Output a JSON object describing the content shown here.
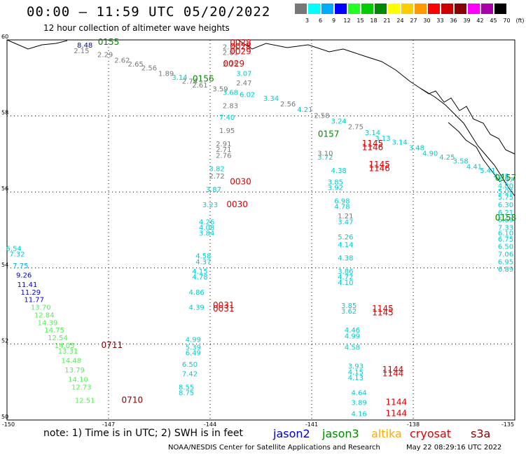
{
  "title": "00:00 – 11:59 UTC 05/20/2022",
  "subtitle": "12 hour collection of altimeter wave heights",
  "note": "note: 1) Time is in UTC; 2) SWH is in feet",
  "credit": "NOAA/NESDIS Center for Satellite Applications and Research",
  "timestamp": "May 22 08:29:16 UTC 2022",
  "legend": {
    "jason2": {
      "label": "jason2",
      "color": "#0000cc"
    },
    "jason3": {
      "label": "jason3",
      "color": "#008800"
    },
    "altika": {
      "label": "altika",
      "color": "#ffaa00"
    },
    "cryosat": {
      "label": "cryosat",
      "color": "#dd0000"
    },
    "s3a": {
      "label": "s3a",
      "color": "#880000"
    }
  },
  "color_scale": {
    "labels": [
      "3",
      "6",
      "9",
      "12",
      "15",
      "18",
      "21",
      "24",
      "27",
      "30",
      "33",
      "36",
      "39",
      "42",
      "45",
      "70",
      "(ft)"
    ],
    "colors": [
      "#777777",
      "#00ffff",
      "#00aaff",
      "#0000ff",
      "#22ff22",
      "#00cc00",
      "#008800",
      "#ffff00",
      "#ffcc00",
      "#ff9900",
      "#ff0000",
      "#cc0000",
      "#880000",
      "#ff00ff",
      "#aa00aa",
      "#000000"
    ]
  },
  "map": {
    "lat_ticks": [
      "60",
      "58",
      "56",
      "54",
      "52",
      "50"
    ],
    "lon_ticks": [
      "-150",
      "-147",
      "-144",
      "-141",
      "-138",
      "-135"
    ],
    "extent": {
      "lon": [
        -150,
        -135
      ],
      "lat": [
        50,
        60
      ]
    }
  },
  "observations": [
    {
      "lon": -147.0,
      "lat": 59.95,
      "v": "0155",
      "c": "#008800",
      "fs": 12
    },
    {
      "lon": -147.7,
      "lat": 59.8,
      "v": "8.48",
      "c": "#0000cc",
      "fs": 10
    },
    {
      "lon": -147.8,
      "lat": 59.65,
      "v": "2.15",
      "c": "#777777",
      "fs": 10
    },
    {
      "lon": -147.1,
      "lat": 59.55,
      "v": "2.29",
      "c": "#777777",
      "fs": 10
    },
    {
      "lon": -146.6,
      "lat": 59.4,
      "v": "2.62",
      "c": "#777777",
      "fs": 10
    },
    {
      "lon": -146.2,
      "lat": 59.3,
      "v": "2.65",
      "c": "#777777",
      "fs": 10
    },
    {
      "lon": -145.8,
      "lat": 59.2,
      "v": "2.56",
      "c": "#777777",
      "fs": 10
    },
    {
      "lon": -145.3,
      "lat": 59.05,
      "v": "1.89",
      "c": "#777777",
      "fs": 10
    },
    {
      "lon": -144.9,
      "lat": 58.95,
      "v": "3.14",
      "c": "#00cccc",
      "fs": 10
    },
    {
      "lon": -144.6,
      "lat": 58.85,
      "v": "2.74",
      "c": "#777777",
      "fs": 10
    },
    {
      "lon": -144.3,
      "lat": 58.75,
      "v": "2.61",
      "c": "#777777",
      "fs": 10
    },
    {
      "lon": -143.7,
      "lat": 58.65,
      "v": "3.59",
      "c": "#777777",
      "fs": 10
    },
    {
      "lon": -142.9,
      "lat": 58.5,
      "v": "6.02",
      "c": "#00cccc",
      "fs": 10
    },
    {
      "lon": -142.2,
      "lat": 58.4,
      "v": "3.34",
      "c": "#00cccc",
      "fs": 10
    },
    {
      "lon": -141.7,
      "lat": 58.25,
      "v": "2.56",
      "c": "#777777",
      "fs": 10
    },
    {
      "lon": -141.2,
      "lat": 58.1,
      "v": "4.21",
      "c": "#00cccc",
      "fs": 10
    },
    {
      "lon": -140.7,
      "lat": 57.95,
      "v": "2.58",
      "c": "#777777",
      "fs": 10
    },
    {
      "lon": -140.2,
      "lat": 57.8,
      "v": "3.24",
      "c": "#00cccc",
      "fs": 10
    },
    {
      "lon": -139.7,
      "lat": 57.65,
      "v": "2.75",
      "c": "#777777",
      "fs": 10
    },
    {
      "lon": -139.2,
      "lat": 57.5,
      "v": "3.14",
      "c": "#00cccc",
      "fs": 10
    },
    {
      "lon": -138.9,
      "lat": 57.35,
      "v": "3.13",
      "c": "#00cccc",
      "fs": 10
    },
    {
      "lon": -138.4,
      "lat": 57.25,
      "v": "3.14",
      "c": "#00cccc",
      "fs": 10
    },
    {
      "lon": -137.9,
      "lat": 57.1,
      "v": "3.48",
      "c": "#00cccc",
      "fs": 10
    },
    {
      "lon": -137.5,
      "lat": 56.95,
      "v": "4.90",
      "c": "#00cccc",
      "fs": 10
    },
    {
      "lon": -137.0,
      "lat": 56.85,
      "v": "4.25",
      "c": "#00cccc",
      "fs": 10
    },
    {
      "lon": -136.6,
      "lat": 56.75,
      "v": "3.58",
      "c": "#00cccc",
      "fs": 10
    },
    {
      "lon": -136.2,
      "lat": 56.6,
      "v": "4.41",
      "c": "#00cccc",
      "fs": 10
    },
    {
      "lon": -135.8,
      "lat": 56.5,
      "v": "5.41",
      "c": "#00cccc",
      "fs": 10
    },
    {
      "lon": -135.4,
      "lat": 56.35,
      "v": "4.48",
      "c": "#00cccc",
      "fs": 10
    },
    {
      "lon": -134.9,
      "lat": 56.25,
      "v": "4.97",
      "c": "#00cccc",
      "fs": 10
    },
    {
      "lon": -134.5,
      "lat": 56.1,
      "v": "4.80",
      "c": "#00cccc",
      "fs": 10
    },
    {
      "lon": -134.1,
      "lat": 55.95,
      "v": "5.06",
      "c": "#00cccc",
      "fs": 10
    },
    {
      "lon": -133.6,
      "lat": 55.8,
      "v": "5.75",
      "c": "#00cccc",
      "fs": 10
    },
    {
      "lon": -133.1,
      "lat": 55.6,
      "v": "6.30",
      "c": "#00cccc",
      "fs": 10
    },
    {
      "lon": -132.5,
      "lat": 55.4,
      "v": "6.21",
      "c": "#00cccc",
      "fs": 10
    },
    {
      "lon": -131.9,
      "lat": 55.2,
      "v": "6.69",
      "c": "#00cccc",
      "fs": 10
    },
    {
      "lon": -131.3,
      "lat": 55.0,
      "v": "7.33",
      "c": "#00cccc",
      "fs": 10
    },
    {
      "lon": -130.8,
      "lat": 54.85,
      "v": "6.10",
      "c": "#00cccc",
      "fs": 10
    },
    {
      "lon": -130.3,
      "lat": 54.7,
      "v": "6.75",
      "c": "#00cccc",
      "fs": 10
    },
    {
      "lon": -129.8,
      "lat": 54.5,
      "v": "6.50",
      "c": "#00cccc",
      "fs": 10
    },
    {
      "lon": -129.2,
      "lat": 54.3,
      "v": "7.06",
      "c": "#00cccc",
      "fs": 10
    },
    {
      "lon": -128.6,
      "lat": 54.1,
      "v": "6.95",
      "c": "#00cccc",
      "fs": 10
    },
    {
      "lon": -128.0,
      "lat": 53.9,
      "v": "6.89",
      "c": "#00cccc",
      "fs": 10
    },
    {
      "lon": -130.7,
      "lat": 55.25,
      "v": "0158",
      "c": "#008800",
      "fs": 12
    },
    {
      "lon": -132.6,
      "lat": 56.3,
      "v": "0157",
      "c": "#008800",
      "fs": 12
    },
    {
      "lon": -140.5,
      "lat": 57.45,
      "v": "0157",
      "c": "#008800",
      "fs": 12
    },
    {
      "lon": -144.2,
      "lat": 58.9,
      "v": "0156",
      "c": "#008800",
      "fs": 12
    },
    {
      "lon": -143.4,
      "lat": 59.75,
      "v": "2.35",
      "c": "#777777",
      "fs": 10
    },
    {
      "lon": -143.4,
      "lat": 59.6,
      "v": "2.81",
      "c": "#777777",
      "fs": 10
    },
    {
      "lon": -143.4,
      "lat": 59.3,
      "v": "2.75",
      "c": "#777777",
      "fs": 10
    },
    {
      "lon": -143.0,
      "lat": 59.05,
      "v": "3.07",
      "c": "#00cccc",
      "fs": 10
    },
    {
      "lon": -143.0,
      "lat": 58.8,
      "v": "2.47",
      "c": "#777777",
      "fs": 10
    },
    {
      "lon": -143.4,
      "lat": 58.55,
      "v": "3.68",
      "c": "#00cccc",
      "fs": 10
    },
    {
      "lon": -143.4,
      "lat": 58.2,
      "v": "2.83",
      "c": "#777777",
      "fs": 10
    },
    {
      "lon": -143.5,
      "lat": 57.9,
      "v": "7.40",
      "c": "#00cccc",
      "fs": 10
    },
    {
      "lon": -143.5,
      "lat": 57.55,
      "v": "1.95",
      "c": "#777777",
      "fs": 10
    },
    {
      "lon": -143.6,
      "lat": 57.2,
      "v": "2.91",
      "c": "#777777",
      "fs": 10
    },
    {
      "lon": -143.6,
      "lat": 57.05,
      "v": "2.71",
      "c": "#777777",
      "fs": 10
    },
    {
      "lon": -143.6,
      "lat": 56.9,
      "v": "2.76",
      "c": "#777777",
      "fs": 10
    },
    {
      "lon": -143.8,
      "lat": 56.55,
      "v": "3.82",
      "c": "#00cccc",
      "fs": 10
    },
    {
      "lon": -143.8,
      "lat": 56.35,
      "v": "2.72",
      "c": "#777777",
      "fs": 10
    },
    {
      "lon": -143.9,
      "lat": 56.0,
      "v": "3.87",
      "c": "#00cccc",
      "fs": 10
    },
    {
      "lon": -144.0,
      "lat": 55.6,
      "v": "3.23",
      "c": "#00cccc",
      "fs": 10
    },
    {
      "lon": -144.1,
      "lat": 55.15,
      "v": "4.26",
      "c": "#00cccc",
      "fs": 10
    },
    {
      "lon": -144.1,
      "lat": 55.0,
      "v": "4.08",
      "c": "#00cccc",
      "fs": 10
    },
    {
      "lon": -144.1,
      "lat": 54.85,
      "v": "3.84",
      "c": "#00cccc",
      "fs": 10
    },
    {
      "lon": -144.2,
      "lat": 54.25,
      "v": "4.58",
      "c": "#00cccc",
      "fs": 10
    },
    {
      "lon": -144.2,
      "lat": 54.1,
      "v": "4.37",
      "c": "#00cccc",
      "fs": 10
    },
    {
      "lon": -144.3,
      "lat": 53.85,
      "v": "4.15",
      "c": "#00cccc",
      "fs": 10
    },
    {
      "lon": -144.3,
      "lat": 53.7,
      "v": "4.78",
      "c": "#00cccc",
      "fs": 10
    },
    {
      "lon": -144.4,
      "lat": 53.3,
      "v": "4.86",
      "c": "#00cccc",
      "fs": 10
    },
    {
      "lon": -144.4,
      "lat": 52.9,
      "v": "4.39",
      "c": "#00cccc",
      "fs": 10
    },
    {
      "lon": -144.5,
      "lat": 52.05,
      "v": "4.99",
      "c": "#00cccc",
      "fs": 10
    },
    {
      "lon": -144.5,
      "lat": 51.85,
      "v": "5.39",
      "c": "#00cccc",
      "fs": 10
    },
    {
      "lon": -144.5,
      "lat": 51.7,
      "v": "6.49",
      "c": "#00cccc",
      "fs": 10
    },
    {
      "lon": -144.6,
      "lat": 51.4,
      "v": "6.50",
      "c": "#00cccc",
      "fs": 10
    },
    {
      "lon": -144.6,
      "lat": 51.15,
      "v": "7.42",
      "c": "#00cccc",
      "fs": 10
    },
    {
      "lon": -144.7,
      "lat": 50.8,
      "v": "8.55",
      "c": "#00cccc",
      "fs": 10
    },
    {
      "lon": -144.7,
      "lat": 50.65,
      "v": "8.75",
      "c": "#00cccc",
      "fs": 10
    },
    {
      "lon": -143.1,
      "lat": 59.85,
      "v": "0028",
      "c": "#dd0000",
      "fs": 12
    },
    {
      "lon": -143.1,
      "lat": 59.75,
      "v": "0028",
      "c": "#dd0000",
      "fs": 12
    },
    {
      "lon": -143.1,
      "lat": 59.62,
      "v": "0029",
      "c": "#dd0000",
      "fs": 12
    },
    {
      "lon": -143.3,
      "lat": 59.3,
      "v": "0029",
      "c": "#dd0000",
      "fs": 12
    },
    {
      "lon": -143.1,
      "lat": 56.2,
      "v": "0030",
      "c": "#dd0000",
      "fs": 12
    },
    {
      "lon": -143.2,
      "lat": 55.6,
      "v": "0030",
      "c": "#dd0000",
      "fs": 12
    },
    {
      "lon": -143.6,
      "lat": 52.95,
      "v": "0031",
      "c": "#dd0000",
      "fs": 12
    },
    {
      "lon": -143.6,
      "lat": 52.85,
      "v": "0031",
      "c": "#dd0000",
      "fs": 12
    },
    {
      "lon": -140.6,
      "lat": 56.95,
      "v": "3.10",
      "c": "#777777",
      "fs": 10
    },
    {
      "lon": -140.6,
      "lat": 56.85,
      "v": "3.72",
      "c": "#00cccc",
      "fs": 10
    },
    {
      "lon": -140.2,
      "lat": 56.5,
      "v": "4.38",
      "c": "#00cccc",
      "fs": 10
    },
    {
      "lon": -140.3,
      "lat": 56.2,
      "v": "3.85",
      "c": "#00cccc",
      "fs": 10
    },
    {
      "lon": -140.3,
      "lat": 56.05,
      "v": "3.92",
      "c": "#00cccc",
      "fs": 10
    },
    {
      "lon": -140.1,
      "lat": 55.7,
      "v": "6.98",
      "c": "#00cccc",
      "fs": 10
    },
    {
      "lon": -140.1,
      "lat": 55.55,
      "v": "4.78",
      "c": "#00cccc",
      "fs": 10
    },
    {
      "lon": -140.0,
      "lat": 55.3,
      "v": "1.21",
      "c": "#777777",
      "fs": 10
    },
    {
      "lon": -140.0,
      "lat": 55.15,
      "v": "3.47",
      "c": "#00cccc",
      "fs": 10
    },
    {
      "lon": -140.0,
      "lat": 54.75,
      "v": "5.26",
      "c": "#00cccc",
      "fs": 10
    },
    {
      "lon": -140.0,
      "lat": 54.55,
      "v": "4.14",
      "c": "#00cccc",
      "fs": 10
    },
    {
      "lon": -140.0,
      "lat": 54.2,
      "v": "4.38",
      "c": "#00cccc",
      "fs": 10
    },
    {
      "lon": -140.0,
      "lat": 53.85,
      "v": "3.86",
      "c": "#00cccc",
      "fs": 10
    },
    {
      "lon": -140.0,
      "lat": 53.7,
      "v": "4.72",
      "c": "#00cccc",
      "fs": 10
    },
    {
      "lon": -140.0,
      "lat": 53.55,
      "v": "4.10",
      "c": "#00cccc",
      "fs": 10
    },
    {
      "lon": -139.9,
      "lat": 52.95,
      "v": "3.85",
      "c": "#00cccc",
      "fs": 10
    },
    {
      "lon": -139.9,
      "lat": 52.8,
      "v": "3.62",
      "c": "#00cccc",
      "fs": 10
    },
    {
      "lon": -139.8,
      "lat": 52.3,
      "v": "4.46",
      "c": "#00cccc",
      "fs": 10
    },
    {
      "lon": -139.8,
      "lat": 52.15,
      "v": "4.99",
      "c": "#00cccc",
      "fs": 10
    },
    {
      "lon": -139.8,
      "lat": 51.85,
      "v": "4.58",
      "c": "#00cccc",
      "fs": 10
    },
    {
      "lon": -139.7,
      "lat": 51.35,
      "v": "3.93",
      "c": "#00cccc",
      "fs": 10
    },
    {
      "lon": -139.7,
      "lat": 51.2,
      "v": "4.15",
      "c": "#00cccc",
      "fs": 10
    },
    {
      "lon": -139.7,
      "lat": 51.05,
      "v": "4.13",
      "c": "#00cccc",
      "fs": 10
    },
    {
      "lon": -139.6,
      "lat": 50.65,
      "v": "4.64",
      "c": "#00cccc",
      "fs": 10
    },
    {
      "lon": -139.6,
      "lat": 50.4,
      "v": "3.89",
      "c": "#00cccc",
      "fs": 10
    },
    {
      "lon": -139.6,
      "lat": 50.1,
      "v": "4.16",
      "c": "#00cccc",
      "fs": 10
    },
    {
      "lon": -139.2,
      "lat": 57.2,
      "v": "1145",
      "c": "#dd0000",
      "fs": 12
    },
    {
      "lon": -139.2,
      "lat": 57.1,
      "v": "1146",
      "c": "#dd0000",
      "fs": 12
    },
    {
      "lon": -139.0,
      "lat": 56.65,
      "v": "1145",
      "c": "#dd0000",
      "fs": 12
    },
    {
      "lon": -139.0,
      "lat": 56.55,
      "v": "1146",
      "c": "#dd0000",
      "fs": 12
    },
    {
      "lon": -138.9,
      "lat": 52.85,
      "v": "1145",
      "c": "#dd0000",
      "fs": 12
    },
    {
      "lon": -138.9,
      "lat": 52.75,
      "v": "1145",
      "c": "#dd0000",
      "fs": 12
    },
    {
      "lon": -138.6,
      "lat": 51.25,
      "v": "1144",
      "c": "#dd0000",
      "fs": 12
    },
    {
      "lon": -138.6,
      "lat": 51.15,
      "v": "1144",
      "c": "#dd0000",
      "fs": 12
    },
    {
      "lon": -138.5,
      "lat": 50.4,
      "v": "1144",
      "c": "#dd0000",
      "fs": 12
    },
    {
      "lon": -138.5,
      "lat": 50.1,
      "v": "1144",
      "c": "#dd0000",
      "fs": 12
    },
    {
      "lon": -149.8,
      "lat": 54.45,
      "v": "6.54",
      "c": "#00cccc",
      "fs": 10
    },
    {
      "lon": -149.7,
      "lat": 54.3,
      "v": "7.32",
      "c": "#00cccc",
      "fs": 10
    },
    {
      "lon": -149.6,
      "lat": 54.0,
      "v": "7.75",
      "c": "#00aaff",
      "fs": 10
    },
    {
      "lon": -149.5,
      "lat": 53.75,
      "v": "9.26",
      "c": "#0000cc",
      "fs": 10
    },
    {
      "lon": -149.4,
      "lat": 53.5,
      "v": "11.41",
      "c": "#0000cc",
      "fs": 10
    },
    {
      "lon": -149.3,
      "lat": 53.3,
      "v": "11.29",
      "c": "#0000cc",
      "fs": 10
    },
    {
      "lon": -149.2,
      "lat": 53.1,
      "v": "11.77",
      "c": "#0000cc",
      "fs": 10
    },
    {
      "lon": -149.0,
      "lat": 52.9,
      "v": "13.70",
      "c": "#55ee55",
      "fs": 10
    },
    {
      "lon": -148.9,
      "lat": 52.7,
      "v": "12.84",
      "c": "#55ee55",
      "fs": 10
    },
    {
      "lon": -148.8,
      "lat": 52.5,
      "v": "14.39",
      "c": "#55ee55",
      "fs": 10
    },
    {
      "lon": -148.6,
      "lat": 52.3,
      "v": "14.75",
      "c": "#55ee55",
      "fs": 10
    },
    {
      "lon": -148.5,
      "lat": 52.1,
      "v": "12.54",
      "c": "#55ee55",
      "fs": 10
    },
    {
      "lon": -148.3,
      "lat": 51.9,
      "v": "14.05",
      "c": "#55ee55",
      "fs": 10
    },
    {
      "lon": -148.2,
      "lat": 51.75,
      "v": "13.31",
      "c": "#55ee55",
      "fs": 10
    },
    {
      "lon": -148.1,
      "lat": 51.5,
      "v": "14.48",
      "c": "#55ee55",
      "fs": 10
    },
    {
      "lon": -148.0,
      "lat": 51.25,
      "v": "13.79",
      "c": "#55ee55",
      "fs": 10
    },
    {
      "lon": -147.9,
      "lat": 51.0,
      "v": "14.10",
      "c": "#55ee55",
      "fs": 10
    },
    {
      "lon": -147.8,
      "lat": 50.8,
      "v": "12.73",
      "c": "#55ee55",
      "fs": 10
    },
    {
      "lon": -147.7,
      "lat": 50.45,
      "v": "12.51",
      "c": "#55ee55",
      "fs": 10
    },
    {
      "lon": -146.9,
      "lat": 51.9,
      "v": "0711",
      "c": "#880000",
      "fs": 12
    },
    {
      "lon": -146.3,
      "lat": 50.45,
      "v": "0710",
      "c": "#880000",
      "fs": 12
    }
  ]
}
